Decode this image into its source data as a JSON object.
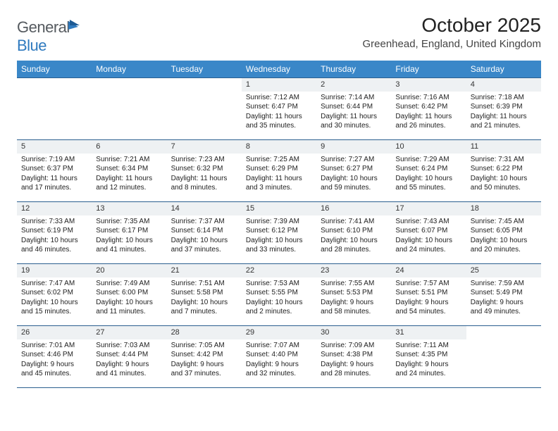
{
  "brand": {
    "part1": "General",
    "part2": "Blue"
  },
  "title": "October 2025",
  "location": "Greenhead, England, United Kingdom",
  "colors": {
    "header_bg": "#3a87c8",
    "header_text": "#ffffff",
    "border": "#2b5f8f",
    "daybar_bg": "#eef1f3",
    "text": "#222222",
    "brand_gray": "#555a5f",
    "brand_blue": "#2f7abf",
    "page_bg": "#ffffff"
  },
  "day_headers": [
    "Sunday",
    "Monday",
    "Tuesday",
    "Wednesday",
    "Thursday",
    "Friday",
    "Saturday"
  ],
  "weeks": [
    [
      {
        "num": "",
        "sunrise": "",
        "sunset": "",
        "daylight": ""
      },
      {
        "num": "",
        "sunrise": "",
        "sunset": "",
        "daylight": ""
      },
      {
        "num": "",
        "sunrise": "",
        "sunset": "",
        "daylight": ""
      },
      {
        "num": "1",
        "sunrise": "Sunrise: 7:12 AM",
        "sunset": "Sunset: 6:47 PM",
        "daylight": "Daylight: 11 hours and 35 minutes."
      },
      {
        "num": "2",
        "sunrise": "Sunrise: 7:14 AM",
        "sunset": "Sunset: 6:44 PM",
        "daylight": "Daylight: 11 hours and 30 minutes."
      },
      {
        "num": "3",
        "sunrise": "Sunrise: 7:16 AM",
        "sunset": "Sunset: 6:42 PM",
        "daylight": "Daylight: 11 hours and 26 minutes."
      },
      {
        "num": "4",
        "sunrise": "Sunrise: 7:18 AM",
        "sunset": "Sunset: 6:39 PM",
        "daylight": "Daylight: 11 hours and 21 minutes."
      }
    ],
    [
      {
        "num": "5",
        "sunrise": "Sunrise: 7:19 AM",
        "sunset": "Sunset: 6:37 PM",
        "daylight": "Daylight: 11 hours and 17 minutes."
      },
      {
        "num": "6",
        "sunrise": "Sunrise: 7:21 AM",
        "sunset": "Sunset: 6:34 PM",
        "daylight": "Daylight: 11 hours and 12 minutes."
      },
      {
        "num": "7",
        "sunrise": "Sunrise: 7:23 AM",
        "sunset": "Sunset: 6:32 PM",
        "daylight": "Daylight: 11 hours and 8 minutes."
      },
      {
        "num": "8",
        "sunrise": "Sunrise: 7:25 AM",
        "sunset": "Sunset: 6:29 PM",
        "daylight": "Daylight: 11 hours and 3 minutes."
      },
      {
        "num": "9",
        "sunrise": "Sunrise: 7:27 AM",
        "sunset": "Sunset: 6:27 PM",
        "daylight": "Daylight: 10 hours and 59 minutes."
      },
      {
        "num": "10",
        "sunrise": "Sunrise: 7:29 AM",
        "sunset": "Sunset: 6:24 PM",
        "daylight": "Daylight: 10 hours and 55 minutes."
      },
      {
        "num": "11",
        "sunrise": "Sunrise: 7:31 AM",
        "sunset": "Sunset: 6:22 PM",
        "daylight": "Daylight: 10 hours and 50 minutes."
      }
    ],
    [
      {
        "num": "12",
        "sunrise": "Sunrise: 7:33 AM",
        "sunset": "Sunset: 6:19 PM",
        "daylight": "Daylight: 10 hours and 46 minutes."
      },
      {
        "num": "13",
        "sunrise": "Sunrise: 7:35 AM",
        "sunset": "Sunset: 6:17 PM",
        "daylight": "Daylight: 10 hours and 41 minutes."
      },
      {
        "num": "14",
        "sunrise": "Sunrise: 7:37 AM",
        "sunset": "Sunset: 6:14 PM",
        "daylight": "Daylight: 10 hours and 37 minutes."
      },
      {
        "num": "15",
        "sunrise": "Sunrise: 7:39 AM",
        "sunset": "Sunset: 6:12 PM",
        "daylight": "Daylight: 10 hours and 33 minutes."
      },
      {
        "num": "16",
        "sunrise": "Sunrise: 7:41 AM",
        "sunset": "Sunset: 6:10 PM",
        "daylight": "Daylight: 10 hours and 28 minutes."
      },
      {
        "num": "17",
        "sunrise": "Sunrise: 7:43 AM",
        "sunset": "Sunset: 6:07 PM",
        "daylight": "Daylight: 10 hours and 24 minutes."
      },
      {
        "num": "18",
        "sunrise": "Sunrise: 7:45 AM",
        "sunset": "Sunset: 6:05 PM",
        "daylight": "Daylight: 10 hours and 20 minutes."
      }
    ],
    [
      {
        "num": "19",
        "sunrise": "Sunrise: 7:47 AM",
        "sunset": "Sunset: 6:02 PM",
        "daylight": "Daylight: 10 hours and 15 minutes."
      },
      {
        "num": "20",
        "sunrise": "Sunrise: 7:49 AM",
        "sunset": "Sunset: 6:00 PM",
        "daylight": "Daylight: 10 hours and 11 minutes."
      },
      {
        "num": "21",
        "sunrise": "Sunrise: 7:51 AM",
        "sunset": "Sunset: 5:58 PM",
        "daylight": "Daylight: 10 hours and 7 minutes."
      },
      {
        "num": "22",
        "sunrise": "Sunrise: 7:53 AM",
        "sunset": "Sunset: 5:55 PM",
        "daylight": "Daylight: 10 hours and 2 minutes."
      },
      {
        "num": "23",
        "sunrise": "Sunrise: 7:55 AM",
        "sunset": "Sunset: 5:53 PM",
        "daylight": "Daylight: 9 hours and 58 minutes."
      },
      {
        "num": "24",
        "sunrise": "Sunrise: 7:57 AM",
        "sunset": "Sunset: 5:51 PM",
        "daylight": "Daylight: 9 hours and 54 minutes."
      },
      {
        "num": "25",
        "sunrise": "Sunrise: 7:59 AM",
        "sunset": "Sunset: 5:49 PM",
        "daylight": "Daylight: 9 hours and 49 minutes."
      }
    ],
    [
      {
        "num": "26",
        "sunrise": "Sunrise: 7:01 AM",
        "sunset": "Sunset: 4:46 PM",
        "daylight": "Daylight: 9 hours and 45 minutes."
      },
      {
        "num": "27",
        "sunrise": "Sunrise: 7:03 AM",
        "sunset": "Sunset: 4:44 PM",
        "daylight": "Daylight: 9 hours and 41 minutes."
      },
      {
        "num": "28",
        "sunrise": "Sunrise: 7:05 AM",
        "sunset": "Sunset: 4:42 PM",
        "daylight": "Daylight: 9 hours and 37 minutes."
      },
      {
        "num": "29",
        "sunrise": "Sunrise: 7:07 AM",
        "sunset": "Sunset: 4:40 PM",
        "daylight": "Daylight: 9 hours and 32 minutes."
      },
      {
        "num": "30",
        "sunrise": "Sunrise: 7:09 AM",
        "sunset": "Sunset: 4:38 PM",
        "daylight": "Daylight: 9 hours and 28 minutes."
      },
      {
        "num": "31",
        "sunrise": "Sunrise: 7:11 AM",
        "sunset": "Sunset: 4:35 PM",
        "daylight": "Daylight: 9 hours and 24 minutes."
      },
      {
        "num": "",
        "sunrise": "",
        "sunset": "",
        "daylight": ""
      }
    ]
  ]
}
